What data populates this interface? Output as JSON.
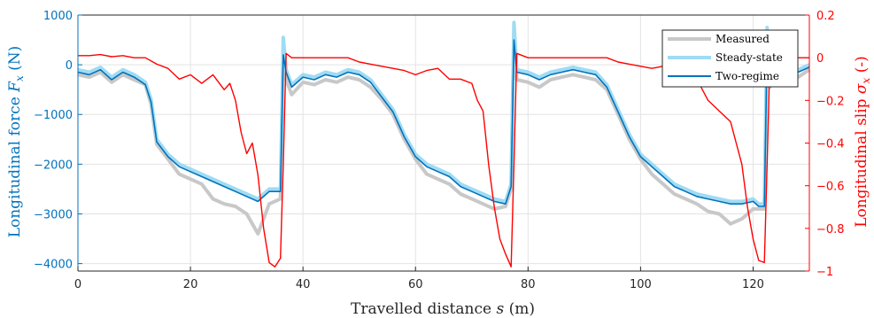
{
  "chart_data": {
    "type": "line",
    "xlabel": "Travelled distance s (m)",
    "ylabel_left": "Longitudinal force F_x (N)",
    "ylabel_right": "Longitudinal slip σ_x (-)",
    "xlim": [
      0,
      130
    ],
    "ylim_left": [
      -4150,
      1000
    ],
    "ylim_right": [
      -1,
      0.2
    ],
    "xticks": [
      "0",
      "20",
      "40",
      "60",
      "80",
      "100",
      "120"
    ],
    "yticks_left": [
      "1000",
      "0",
      "−1000",
      "−2000",
      "−3000",
      "−4000"
    ],
    "yticks_right": [
      "0.2",
      "0",
      "−0.2",
      "−0.4",
      "−0.6",
      "−0.8",
      "−1"
    ],
    "grid": true,
    "legend_position": "top-right",
    "colors": {
      "measured": "#c8c8c8",
      "steady_state": "#9fdcf3",
      "two_regime": "#0072bd",
      "slip": "#ff0000",
      "left_axis": "#0072bd",
      "right_axis": "#ff0000"
    },
    "series": [
      {
        "name": "Measured",
        "axis": "left",
        "x": [
          0,
          2,
          4,
          6,
          8,
          10,
          12,
          13,
          14,
          16,
          18,
          20,
          22,
          24,
          26,
          28,
          30,
          32,
          34,
          36,
          36.5,
          37,
          38,
          40,
          42,
          44,
          46,
          48,
          50,
          52,
          54,
          56,
          58,
          60,
          62,
          64,
          66,
          68,
          70,
          72,
          74,
          76,
          77,
          77.5,
          78,
          80,
          82,
          84,
          86,
          88,
          90,
          92,
          94,
          96,
          98,
          100,
          102,
          104,
          106,
          108,
          110,
          112,
          114,
          116,
          118,
          120,
          121,
          122,
          122.5,
          123,
          124,
          126,
          128,
          130
        ],
        "y": [
          -200,
          -250,
          -150,
          -350,
          -200,
          -300,
          -400,
          -800,
          -1600,
          -1900,
          -2200,
          -2300,
          -2400,
          -2700,
          -2800,
          -2850,
          -3000,
          -3400,
          -2800,
          -2700,
          400,
          -300,
          -600,
          -350,
          -400,
          -300,
          -350,
          -250,
          -300,
          -450,
          -700,
          -1000,
          -1500,
          -1900,
          -2200,
          -2300,
          -2400,
          -2600,
          -2700,
          -2800,
          -2900,
          -2850,
          -2500,
          700,
          -300,
          -350,
          -450,
          -300,
          -250,
          -200,
          -250,
          -300,
          -500,
          -1000,
          -1500,
          -1900,
          -2200,
          -2400,
          -2600,
          -2700,
          -2800,
          -2950,
          -3000,
          -3200,
          -3100,
          -2900,
          -2900,
          -2900,
          600,
          -450,
          -300,
          -350,
          -250,
          -100
        ]
      },
      {
        "name": "Steady-state",
        "axis": "left",
        "x": [
          0,
          2,
          4,
          6,
          8,
          10,
          12,
          13,
          14,
          16,
          18,
          20,
          22,
          24,
          26,
          28,
          30,
          32,
          34,
          36,
          36.5,
          37,
          38,
          40,
          42,
          44,
          46,
          48,
          50,
          52,
          54,
          56,
          58,
          60,
          62,
          64,
          66,
          68,
          70,
          72,
          74,
          76,
          77,
          77.5,
          78,
          80,
          82,
          84,
          86,
          88,
          90,
          92,
          94,
          96,
          98,
          100,
          102,
          104,
          106,
          108,
          110,
          112,
          114,
          116,
          118,
          120,
          121,
          122,
          122.5,
          123,
          124,
          126,
          128,
          130
        ],
        "y": [
          -100,
          -150,
          -50,
          -250,
          -100,
          -200,
          -350,
          -700,
          -1500,
          -1800,
          -2000,
          -2100,
          -2200,
          -2300,
          -2400,
          -2500,
          -2600,
          -2700,
          -2500,
          -2500,
          550,
          -100,
          -400,
          -200,
          -250,
          -150,
          -200,
          -100,
          -150,
          -300,
          -600,
          -900,
          -1400,
          -1800,
          -2000,
          -2100,
          -2200,
          -2400,
          -2500,
          -2600,
          -2700,
          -2750,
          -2400,
          850,
          -100,
          -150,
          -250,
          -150,
          -100,
          -50,
          -100,
          -150,
          -400,
          -900,
          -1400,
          -1800,
          -2000,
          -2200,
          -2400,
          -2500,
          -2600,
          -2650,
          -2700,
          -2750,
          -2750,
          -2700,
          -2800,
          -2800,
          750,
          -350,
          -150,
          -200,
          -100,
          0
        ]
      },
      {
        "name": "Two-regime",
        "axis": "left",
        "x": [
          0,
          2,
          4,
          6,
          8,
          10,
          12,
          13,
          14,
          16,
          18,
          20,
          22,
          24,
          26,
          28,
          30,
          32,
          34,
          36,
          36.5,
          37,
          38,
          40,
          42,
          44,
          46,
          48,
          50,
          52,
          54,
          56,
          58,
          60,
          62,
          64,
          66,
          68,
          70,
          72,
          74,
          76,
          77,
          77.5,
          78,
          80,
          82,
          84,
          86,
          88,
          90,
          92,
          94,
          96,
          98,
          100,
          102,
          104,
          106,
          108,
          110,
          112,
          114,
          116,
          118,
          120,
          121,
          122,
          122.5,
          123,
          124,
          126,
          128,
          130
        ],
        "y": [
          -150,
          -200,
          -100,
          -300,
          -150,
          -250,
          -400,
          -750,
          -1550,
          -1850,
          -2050,
          -2150,
          -2250,
          -2350,
          -2450,
          -2550,
          -2650,
          -2750,
          -2550,
          -2550,
          200,
          -150,
          -450,
          -250,
          -300,
          -200,
          -250,
          -150,
          -200,
          -350,
          -650,
          -950,
          -1450,
          -1850,
          -2050,
          -2150,
          -2250,
          -2450,
          -2550,
          -2650,
          -2750,
          -2800,
          -2450,
          500,
          -150,
          -200,
          -300,
          -200,
          -150,
          -100,
          -150,
          -200,
          -450,
          -950,
          -1450,
          -1850,
          -2050,
          -2250,
          -2450,
          -2550,
          -2650,
          -2700,
          -2750,
          -2800,
          -2800,
          -2750,
          -2850,
          -2850,
          400,
          -400,
          -200,
          -250,
          -150,
          -50
        ]
      },
      {
        "name": "Longitudinal slip",
        "axis": "right",
        "x": [
          0,
          2,
          4,
          6,
          8,
          10,
          12,
          14,
          16,
          18,
          20,
          22,
          24,
          26,
          27,
          28,
          29,
          30,
          31,
          32,
          33,
          34,
          35,
          36,
          36.5,
          37,
          38,
          40,
          42,
          44,
          46,
          48,
          50,
          52,
          54,
          56,
          58,
          60,
          62,
          64,
          66,
          68,
          70,
          71,
          72,
          73,
          74,
          75,
          76,
          77,
          77.5,
          78,
          80,
          82,
          84,
          86,
          88,
          90,
          92,
          94,
          96,
          98,
          100,
          102,
          104,
          106,
          108,
          110,
          112,
          114,
          116,
          117,
          118,
          119,
          120,
          121,
          122,
          122.5,
          123,
          124,
          126,
          128,
          130
        ],
        "y": [
          0.01,
          0.01,
          0.015,
          0.005,
          0.01,
          0.0,
          0.0,
          -0.03,
          -0.05,
          -0.1,
          -0.08,
          -0.12,
          -0.08,
          -0.15,
          -0.12,
          -0.2,
          -0.35,
          -0.45,
          -0.4,
          -0.55,
          -0.8,
          -0.96,
          -0.98,
          -0.94,
          -0.5,
          0.02,
          0.0,
          0.0,
          0.0,
          0.0,
          0.0,
          0.0,
          -0.02,
          -0.03,
          -0.04,
          -0.05,
          -0.06,
          -0.08,
          -0.06,
          -0.05,
          -0.1,
          -0.1,
          -0.12,
          -0.2,
          -0.25,
          -0.5,
          -0.7,
          -0.85,
          -0.92,
          -0.98,
          -0.5,
          0.02,
          0.0,
          0.0,
          0.0,
          0.0,
          0.0,
          0.0,
          0.0,
          0.0,
          -0.02,
          -0.03,
          -0.04,
          -0.05,
          -0.04,
          -0.05,
          -0.07,
          -0.1,
          -0.2,
          -0.25,
          -0.3,
          -0.4,
          -0.5,
          -0.7,
          -0.85,
          -0.95,
          -0.96,
          -0.5,
          0.0,
          0.0,
          0.0,
          0.0,
          0.0
        ]
      }
    ]
  }
}
